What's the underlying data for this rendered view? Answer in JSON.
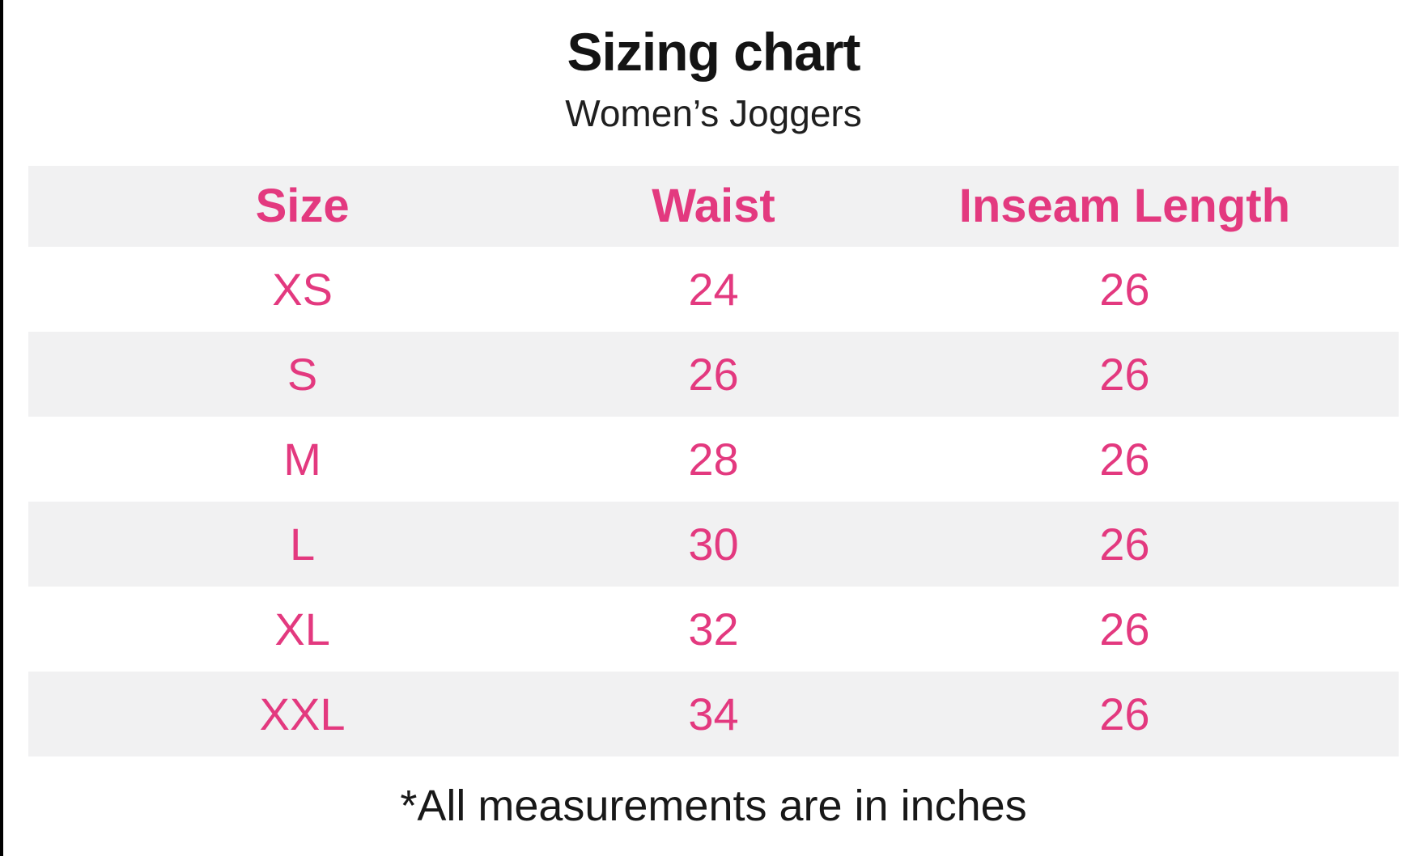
{
  "page": {
    "title": "Sizing chart",
    "subtitle": "Women’s Joggers",
    "footnote": "*All measurements are in inches"
  },
  "table": {
    "headers": [
      "Size",
      "Waist",
      "Inseam Length"
    ],
    "rows": [
      [
        "XS",
        "24",
        "26"
      ],
      [
        "S",
        "26",
        "26"
      ],
      [
        "M",
        "28",
        "26"
      ],
      [
        "L",
        "30",
        "26"
      ],
      [
        "XL",
        "32",
        "26"
      ],
      [
        "XXL",
        "34",
        "26"
      ]
    ]
  },
  "chart_data": {
    "type": "table",
    "title": "Sizing chart",
    "subtitle": "Women’s Joggers",
    "columns": [
      "Size",
      "Waist",
      "Inseam Length"
    ],
    "rows": [
      [
        "XS",
        24,
        26
      ],
      [
        "S",
        26,
        26
      ],
      [
        "M",
        28,
        26
      ],
      [
        "L",
        30,
        26
      ],
      [
        "XL",
        32,
        26
      ],
      [
        "XXL",
        34,
        26
      ]
    ],
    "footnote": "*All measurements are in inches",
    "units": "inches"
  },
  "colors": {
    "accent_pink": "#e3397f",
    "row_stripe": "#f1f1f2",
    "text_black": "#141414",
    "border_black": "#000000"
  }
}
